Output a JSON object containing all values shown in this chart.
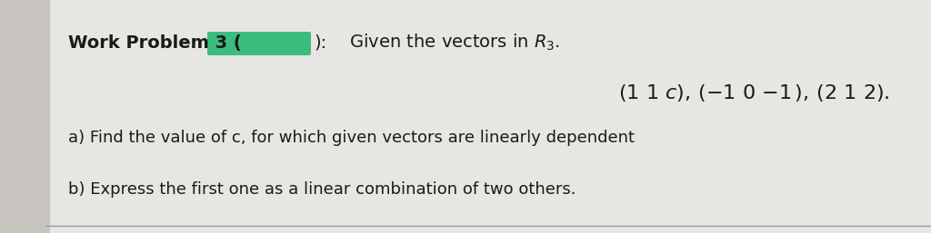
{
  "background_color": "#d8d5d0",
  "page_color": "#e8e6e2",
  "left_panel_color": "#c8c5c0",
  "green_color": "#3dbd7d",
  "title_text": "Work Problem 3 (",
  "after_box_text": "):",
  "intro_text": " Given the vectors in $R_3$.",
  "vectors_line": "(1 1 c),\\,(-1 0 -1),\\,(2 1 2).",
  "part_a": "a) Find the value of c, for which given vectors are linearly dependent",
  "part_b": "b) Express the first one as a linear combination of two others.",
  "font_size_title": 14,
  "font_size_body": 13,
  "font_size_vectors": 15,
  "text_color": "#1a1a1a",
  "line_color": "#999999"
}
